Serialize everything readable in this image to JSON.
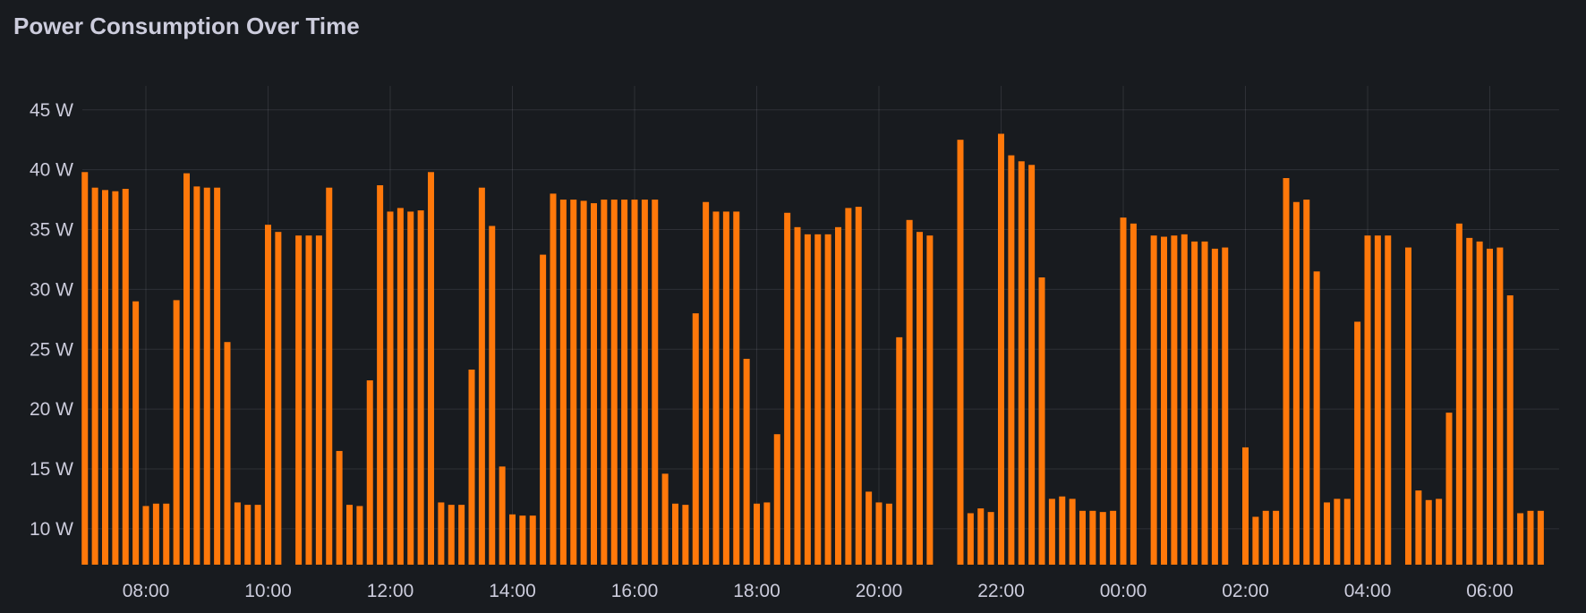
{
  "panel": {
    "title": "Power Consumption Over Time"
  },
  "chart_data": {
    "type": "bar",
    "title": "Power Consumption Over Time",
    "xlabel": "",
    "ylabel": "",
    "unit": "W",
    "ylim": [
      7,
      47
    ],
    "grid": true,
    "bar_color": "#ff780a",
    "background": "#181b1f",
    "x_ticks": [
      "08:00",
      "10:00",
      "12:00",
      "14:00",
      "16:00",
      "18:00",
      "20:00",
      "22:00",
      "00:00",
      "02:00",
      "04:00",
      "06:00"
    ],
    "y_ticks": [
      {
        "value": 10,
        "label": "10 W"
      },
      {
        "value": 15,
        "label": "15 W"
      },
      {
        "value": 20,
        "label": "20 W"
      },
      {
        "value": 25,
        "label": "25 W"
      },
      {
        "value": 30,
        "label": "30 W"
      },
      {
        "value": 35,
        "label": "35 W"
      },
      {
        "value": 40,
        "label": "40 W"
      },
      {
        "value": 45,
        "label": "45 W"
      }
    ],
    "x": [
      "07:00",
      "07:10",
      "07:20",
      "07:30",
      "07:40",
      "07:50",
      "08:00",
      "08:10",
      "08:20",
      "08:30",
      "08:40",
      "08:50",
      "09:00",
      "09:10",
      "09:20",
      "09:30",
      "09:40",
      "09:50",
      "10:00",
      "10:10",
      "10:20",
      "10:30",
      "10:40",
      "10:50",
      "11:00",
      "11:10",
      "11:20",
      "11:30",
      "11:40",
      "11:50",
      "12:00",
      "12:10",
      "12:20",
      "12:30",
      "12:40",
      "12:50",
      "13:00",
      "13:10",
      "13:20",
      "13:30",
      "13:40",
      "13:50",
      "14:00",
      "14:10",
      "14:20",
      "14:30",
      "14:40",
      "14:50",
      "15:00",
      "15:10",
      "15:20",
      "15:30",
      "15:40",
      "15:50",
      "16:00",
      "16:10",
      "16:20",
      "16:30",
      "16:40",
      "16:50",
      "17:00",
      "17:10",
      "17:20",
      "17:30",
      "17:40",
      "17:50",
      "18:00",
      "18:10",
      "18:20",
      "18:30",
      "18:40",
      "18:50",
      "19:00",
      "19:10",
      "19:20",
      "19:30",
      "19:40",
      "19:50",
      "20:00",
      "20:10",
      "20:20",
      "20:30",
      "20:40",
      "20:50",
      "21:00",
      "21:10",
      "21:20",
      "21:30",
      "21:40",
      "21:50",
      "22:00",
      "22:10",
      "22:20",
      "22:30",
      "22:40",
      "22:50",
      "23:00",
      "23:10",
      "23:20",
      "23:30",
      "23:40",
      "23:50",
      "00:00",
      "00:10",
      "00:20",
      "00:30",
      "00:40",
      "00:50",
      "01:00",
      "01:10",
      "01:20",
      "01:30",
      "01:40",
      "01:50",
      "02:00",
      "02:10",
      "02:20",
      "02:30",
      "02:40",
      "02:50",
      "03:00",
      "03:10",
      "03:20",
      "03:30",
      "03:40",
      "03:50",
      "04:00",
      "04:10",
      "04:20",
      "04:30",
      "04:40",
      "04:50",
      "05:00",
      "05:10",
      "05:20",
      "05:30",
      "05:40",
      "05:50",
      "06:00",
      "06:10",
      "06:20",
      "06:30",
      "06:40",
      "06:50"
    ],
    "values": [
      39.8,
      38.5,
      38.3,
      38.2,
      38.4,
      29.0,
      11.9,
      12.1,
      12.1,
      29.1,
      39.7,
      38.6,
      38.5,
      38.5,
      25.6,
      12.2,
      12.0,
      12.0,
      35.4,
      34.8,
      null,
      34.5,
      34.5,
      34.5,
      38.5,
      16.5,
      12.0,
      11.9,
      22.4,
      38.7,
      36.5,
      36.8,
      36.5,
      36.6,
      39.8,
      12.2,
      12.0,
      12.0,
      23.3,
      38.5,
      35.3,
      15.2,
      11.2,
      11.1,
      11.1,
      32.9,
      38.0,
      37.5,
      37.5,
      37.4,
      37.2,
      37.5,
      37.5,
      37.5,
      37.5,
      37.5,
      37.5,
      14.6,
      12.1,
      12.0,
      28.0,
      37.3,
      36.5,
      36.5,
      36.5,
      24.2,
      12.1,
      12.2,
      17.9,
      36.4,
      35.2,
      34.6,
      34.6,
      34.6,
      35.2,
      36.8,
      36.9,
      13.1,
      12.2,
      12.1,
      26.0,
      35.8,
      34.8,
      34.5,
      null,
      null,
      42.5,
      11.3,
      11.7,
      11.4,
      43.0,
      41.2,
      40.7,
      40.4,
      31.0,
      12.5,
      12.7,
      12.5,
      11.5,
      11.5,
      11.4,
      11.5,
      36.0,
      35.5,
      null,
      34.5,
      34.4,
      34.5,
      34.6,
      34.0,
      34.0,
      33.4,
      33.5,
      null,
      16.8,
      11.0,
      11.5,
      11.5,
      39.3,
      37.3,
      37.5,
      31.5,
      12.2,
      12.5,
      12.5,
      27.3,
      34.5,
      34.5,
      34.5,
      null,
      33.5,
      13.2,
      12.4,
      12.5,
      19.7,
      35.5,
      34.3,
      34.0,
      33.4,
      33.5,
      29.5,
      11.3,
      11.5,
      11.5
    ]
  }
}
